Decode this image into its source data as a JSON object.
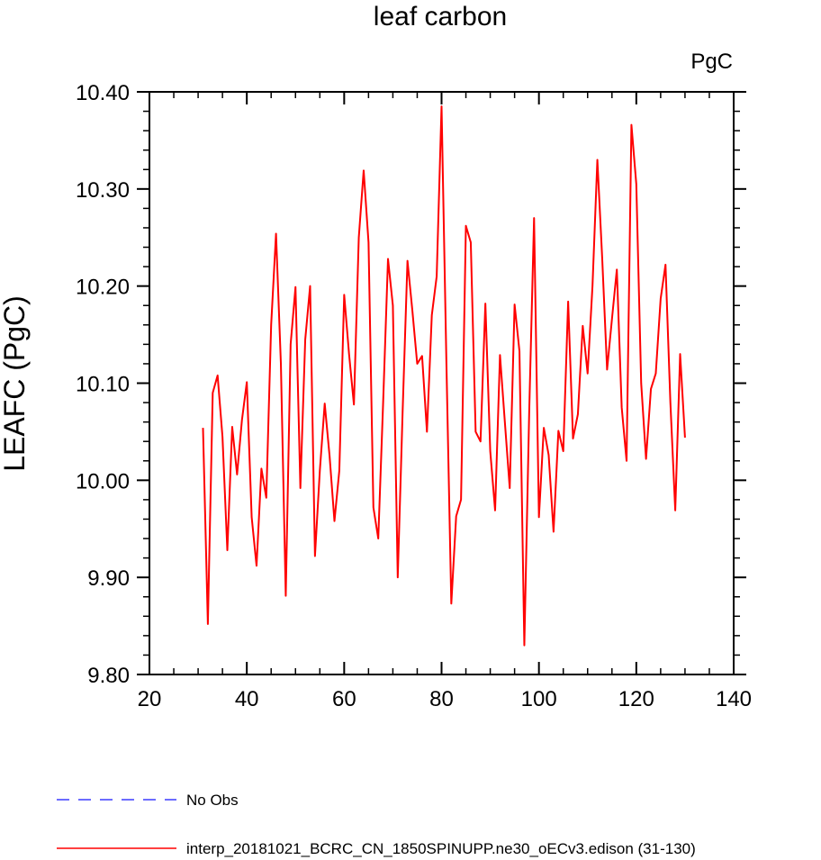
{
  "chart_data": {
    "type": "line",
    "title": "leaf carbon",
    "units": "PgC",
    "xlabel": "",
    "ylabel": "LEAFC  (PgC)",
    "xlim": [
      20,
      140
    ],
    "ylim": [
      9.8,
      10.4
    ],
    "x_ticks": [
      20,
      40,
      60,
      80,
      100,
      120,
      140
    ],
    "x_tick_labels": [
      "20",
      "40",
      "60",
      "80",
      "100",
      "120",
      "140"
    ],
    "y_ticks": [
      9.8,
      9.9,
      10.0,
      10.1,
      10.2,
      10.3,
      10.4
    ],
    "y_tick_labels": [
      "9.80",
      "9.90",
      "10.00",
      "10.10",
      "10.20",
      "10.30",
      "10.40"
    ],
    "grid": false,
    "legend_position": "bottom",
    "series": [
      {
        "name": "No Obs",
        "color": "#3b3bff",
        "dash": "dashed",
        "x": [],
        "y": []
      },
      {
        "name": "interp_20181021_BCRC_CN_1850SPINUPP.ne30_oECv3.edison (31-130)",
        "color": "#ff0000",
        "dash": "solid",
        "x": [
          31,
          32,
          33,
          34,
          35,
          36,
          37,
          38,
          39,
          40,
          41,
          42,
          43,
          44,
          45,
          46,
          47,
          48,
          49,
          50,
          51,
          52,
          53,
          54,
          55,
          56,
          57,
          58,
          59,
          60,
          61,
          62,
          63,
          64,
          65,
          66,
          67,
          68,
          69,
          70,
          71,
          72,
          73,
          74,
          75,
          76,
          77,
          78,
          79,
          80,
          81,
          82,
          83,
          84,
          85,
          86,
          87,
          88,
          89,
          90,
          91,
          92,
          93,
          94,
          95,
          96,
          97,
          98,
          99,
          100,
          101,
          102,
          103,
          104,
          105,
          106,
          107,
          108,
          109,
          110,
          111,
          112,
          113,
          114,
          115,
          116,
          117,
          118,
          119,
          120,
          121,
          122,
          123,
          124,
          125,
          126,
          127,
          128,
          129,
          130
        ],
        "y": [
          10.054,
          9.852,
          10.09,
          10.108,
          10.045,
          9.928,
          10.055,
          10.006,
          10.062,
          10.101,
          9.962,
          9.912,
          10.012,
          9.982,
          10.16,
          10.254,
          10.12,
          9.881,
          10.14,
          10.199,
          9.992,
          10.145,
          10.2,
          9.922,
          10.01,
          10.079,
          10.025,
          9.958,
          10.01,
          10.191,
          10.13,
          10.078,
          10.25,
          10.319,
          10.245,
          9.972,
          9.94,
          10.08,
          10.228,
          10.18,
          9.9,
          10.07,
          10.226,
          10.175,
          10.12,
          10.128,
          10.05,
          10.17,
          10.21,
          10.385,
          10.12,
          9.873,
          9.963,
          9.98,
          10.262,
          10.245,
          10.05,
          10.04,
          10.182,
          10.03,
          9.969,
          10.129,
          10.06,
          9.992,
          10.181,
          10.133,
          9.83,
          10.07,
          10.27,
          9.962,
          10.054,
          10.026,
          9.947,
          10.051,
          10.03,
          10.184,
          10.043,
          10.068,
          10.159,
          10.11,
          10.2,
          10.33,
          10.228,
          10.114,
          10.166,
          10.217,
          10.075,
          10.02,
          10.366,
          10.305,
          10.1,
          10.022,
          10.094,
          10.11,
          10.187,
          10.222,
          10.08,
          9.969,
          10.13,
          10.044
        ]
      }
    ]
  }
}
